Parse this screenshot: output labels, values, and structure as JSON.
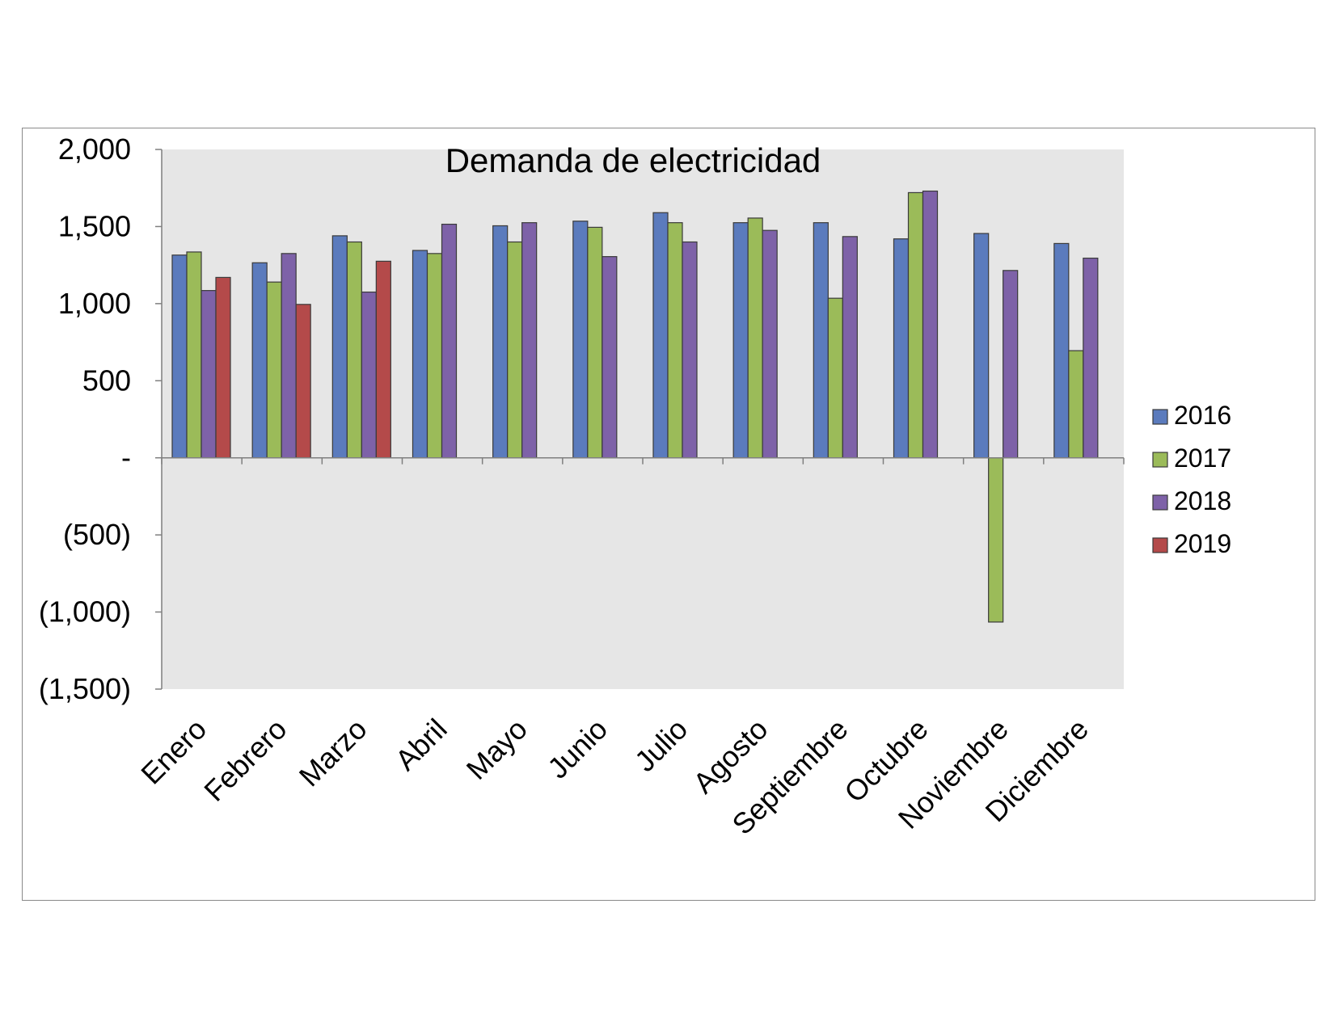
{
  "chart_data": {
    "type": "bar",
    "title": "Demanda de electricidad",
    "xlabel": "",
    "ylabel": "",
    "ylim": [
      -1500,
      2000
    ],
    "yticks": [
      2000,
      1500,
      1000,
      500,
      0,
      -500,
      -1000,
      -1500
    ],
    "ytick_labels": [
      "2,000",
      "1,500",
      "1,000",
      "500",
      "-",
      "(500)",
      "(1,000)",
      "(1,500)"
    ],
    "categories": [
      "Enero",
      "Febrero",
      "Marzo",
      "Abril",
      "Mayo",
      "Junio",
      "Julio",
      "Agosto",
      "Septiembre",
      "Octubre",
      "Noviembre",
      "Diciembre"
    ],
    "series": [
      {
        "name": "2016",
        "color": "#5b7bbd",
        "values": [
          1315,
          1265,
          1440,
          1345,
          1505,
          1535,
          1590,
          1525,
          1525,
          1420,
          1455,
          1390
        ]
      },
      {
        "name": "2017",
        "color": "#9bbb59",
        "values": [
          1335,
          1140,
          1400,
          1325,
          1400,
          1495,
          1525,
          1555,
          1035,
          1720,
          -1065,
          695
        ]
      },
      {
        "name": "2018",
        "color": "#7e62a8",
        "values": [
          1085,
          1325,
          1075,
          1515,
          1525,
          1305,
          1400,
          1475,
          1435,
          1730,
          1215,
          1295
        ]
      },
      {
        "name": "2019",
        "color": "#b44a4a",
        "values": [
          1170,
          995,
          1275,
          null,
          null,
          null,
          null,
          null,
          null,
          null,
          null,
          null
        ]
      }
    ],
    "grid": false,
    "legend": "right",
    "plot_background": "#e6e6e6"
  }
}
